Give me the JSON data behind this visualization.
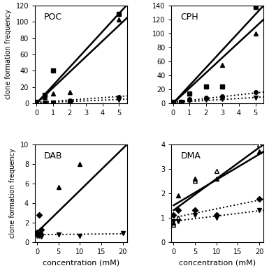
{
  "subplots": [
    {
      "title": "POC",
      "xlim": [
        -0.1,
        5.5
      ],
      "ylim": [
        0,
        120
      ],
      "yticks": [
        0,
        20,
        40,
        60,
        80,
        100,
        120
      ],
      "xticks": [
        0,
        1,
        2,
        3,
        4,
        5
      ],
      "solid_line1": {
        "x": [
          0,
          5.5
        ],
        "y": [
          0,
          121
        ]
      },
      "solid_line2": {
        "x": [
          0,
          5.5
        ],
        "y": [
          0,
          105
        ]
      },
      "dotted_line1": {
        "x": [
          0,
          5.5
        ],
        "y": [
          1.0,
          9.0
        ]
      },
      "dotted_line2": {
        "x": [
          0,
          5.5
        ],
        "y": [
          0.5,
          5.0
        ]
      },
      "scatter_solid_sq": {
        "x": [
          0,
          0.5,
          1,
          2,
          5
        ],
        "y": [
          2,
          10,
          40,
          2,
          110
        ]
      },
      "scatter_solid_tri": {
        "x": [
          0,
          0.5,
          1,
          2,
          5
        ],
        "y": [
          1,
          8,
          12,
          14,
          103
        ]
      },
      "scatter_dot_circ": {
        "x": [
          0,
          0.5,
          1,
          2,
          5
        ],
        "y": [
          1.5,
          1,
          1,
          3,
          8
        ]
      },
      "scatter_dot_tri_down": {
        "x": [
          0,
          0.5,
          1,
          2,
          5
        ],
        "y": [
          0.5,
          0.5,
          0.5,
          1.5,
          4.5
        ]
      }
    },
    {
      "title": "CPH",
      "xlim": [
        -0.1,
        5.5
      ],
      "ylim": [
        0,
        140
      ],
      "yticks": [
        0,
        20,
        40,
        60,
        80,
        100,
        120,
        140
      ],
      "xticks": [
        0,
        1,
        2,
        3,
        4,
        5
      ],
      "solid_line1": {
        "x": [
          0,
          5.5
        ],
        "y": [
          0,
          140
        ]
      },
      "solid_line2": {
        "x": [
          0,
          5.5
        ],
        "y": [
          0,
          120
        ]
      },
      "dotted_line1": {
        "x": [
          0,
          5.5
        ],
        "y": [
          1.5,
          16
        ]
      },
      "dotted_line2": {
        "x": [
          0,
          5.5
        ],
        "y": [
          1.0,
          9
        ]
      },
      "scatter_solid_sq": {
        "x": [
          0,
          0.5,
          1,
          2,
          3,
          5
        ],
        "y": [
          2,
          2,
          14,
          24,
          24,
          138
        ]
      },
      "scatter_solid_tri": {
        "x": [
          0,
          0.5,
          1,
          2,
          3,
          5
        ],
        "y": [
          2,
          2,
          14,
          8,
          55,
          100
        ]
      },
      "scatter_dot_circ": {
        "x": [
          0,
          0.5,
          1,
          2,
          3,
          5
        ],
        "y": [
          1.5,
          1,
          6,
          8,
          10,
          16
        ]
      },
      "scatter_dot_tri_down": {
        "x": [
          0,
          0.5,
          1,
          2,
          3,
          5
        ],
        "y": [
          1.0,
          1,
          4,
          5,
          6,
          8
        ]
      }
    },
    {
      "title": "DAB",
      "xlim": [
        -0.5,
        21
      ],
      "ylim": [
        0,
        10
      ],
      "yticks": [
        0,
        2,
        4,
        6,
        8,
        10
      ],
      "xticks": [
        0,
        5,
        10,
        15,
        20
      ],
      "solid_line1": {
        "x": [
          0,
          21
        ],
        "y": [
          1.0,
          10.0
        ]
      },
      "dotted_line1": {
        "x": [
          0,
          21
        ],
        "y": [
          0.75,
          0.85
        ]
      },
      "scatter_solid_tri": {
        "x": [
          0,
          1,
          5,
          10
        ],
        "y": [
          1.0,
          1.0,
          5.6,
          8.0
        ]
      },
      "scatter_solid_diamond": {
        "x": [
          0,
          0.5,
          1
        ],
        "y": [
          1.0,
          2.8,
          1.3
        ]
      },
      "scatter_dot_tri_down": {
        "x": [
          0,
          0.5,
          1,
          5,
          10,
          20
        ],
        "y": [
          0.65,
          0.65,
          0.55,
          0.75,
          0.65,
          0.9
        ]
      }
    },
    {
      "title": "DMA",
      "xlim": [
        -0.5,
        21
      ],
      "ylim": [
        0,
        4
      ],
      "yticks": [
        0,
        1,
        2,
        3,
        4
      ],
      "xticks": [
        0,
        5,
        10,
        15,
        20
      ],
      "solid_line1": {
        "x": [
          0,
          21
        ],
        "y": [
          1.3,
          4.0
        ]
      },
      "solid_line2": {
        "x": [
          0,
          21
        ],
        "y": [
          1.5,
          3.7
        ]
      },
      "dotted_line1": {
        "x": [
          0,
          21
        ],
        "y": [
          1.0,
          1.75
        ]
      },
      "dotted_line2": {
        "x": [
          0,
          21
        ],
        "y": [
          0.85,
          1.3
        ]
      },
      "scatter_open_tri": {
        "x": [
          0,
          1,
          5,
          10,
          20
        ],
        "y": [
          0.7,
          1.0,
          2.5,
          2.9,
          4.0
        ]
      },
      "scatter_solid_tri": {
        "x": [
          0,
          1,
          5,
          10,
          20
        ],
        "y": [
          0.8,
          1.9,
          2.6,
          2.6,
          3.7
        ]
      },
      "scatter_solid_diamond": {
        "x": [
          0,
          1,
          5,
          10,
          20
        ],
        "y": [
          1.1,
          1.3,
          1.3,
          1.1,
          1.75
        ]
      },
      "scatter_dot_tri_down": {
        "x": [
          0,
          1,
          5,
          10,
          20
        ],
        "y": [
          0.85,
          0.85,
          1.1,
          1.0,
          1.3
        ]
      }
    }
  ],
  "ylabel": "clone formation frequency",
  "xlabel": "concentration (mM)",
  "lw_solid": 1.8,
  "lw_dotted": 1.4,
  "markersize": 5
}
